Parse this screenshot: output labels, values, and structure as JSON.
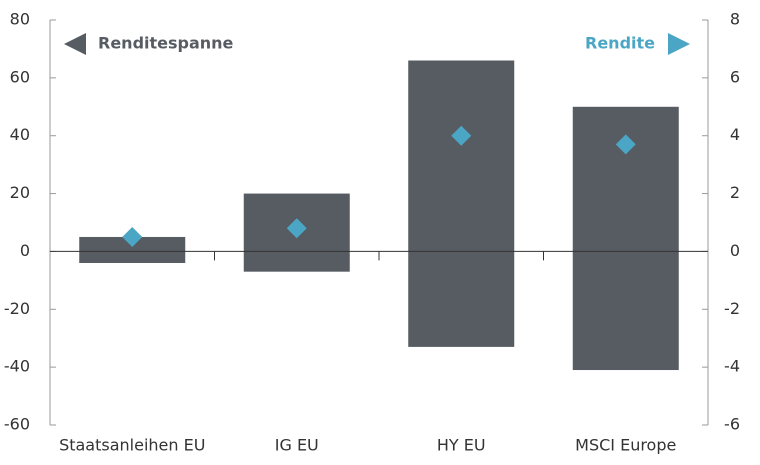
{
  "chart_data": {
    "type": "floating-bar",
    "categories": [
      "Staatsanleihen EU",
      "IG EU",
      "HY EU",
      "MSCI Europe"
    ],
    "series": [
      {
        "name": "Renditespanne",
        "color": "#575c62",
        "low": [
          -4,
          -7,
          -33,
          -41
        ],
        "high": [
          5,
          20,
          66,
          50
        ]
      },
      {
        "name": "Rendite",
        "color": "#4ba6c6",
        "values": [
          0.5,
          0.8,
          4.0,
          3.7
        ],
        "axis": "y2"
      }
    ],
    "ylim": [
      -60,
      80
    ],
    "yticks": [
      -60,
      -40,
      -20,
      0,
      20,
      40,
      60,
      80
    ],
    "y2lim": [
      -6,
      8
    ],
    "y2ticks": [
      -6,
      -4,
      -2,
      0,
      2,
      4,
      6,
      8
    ]
  }
}
